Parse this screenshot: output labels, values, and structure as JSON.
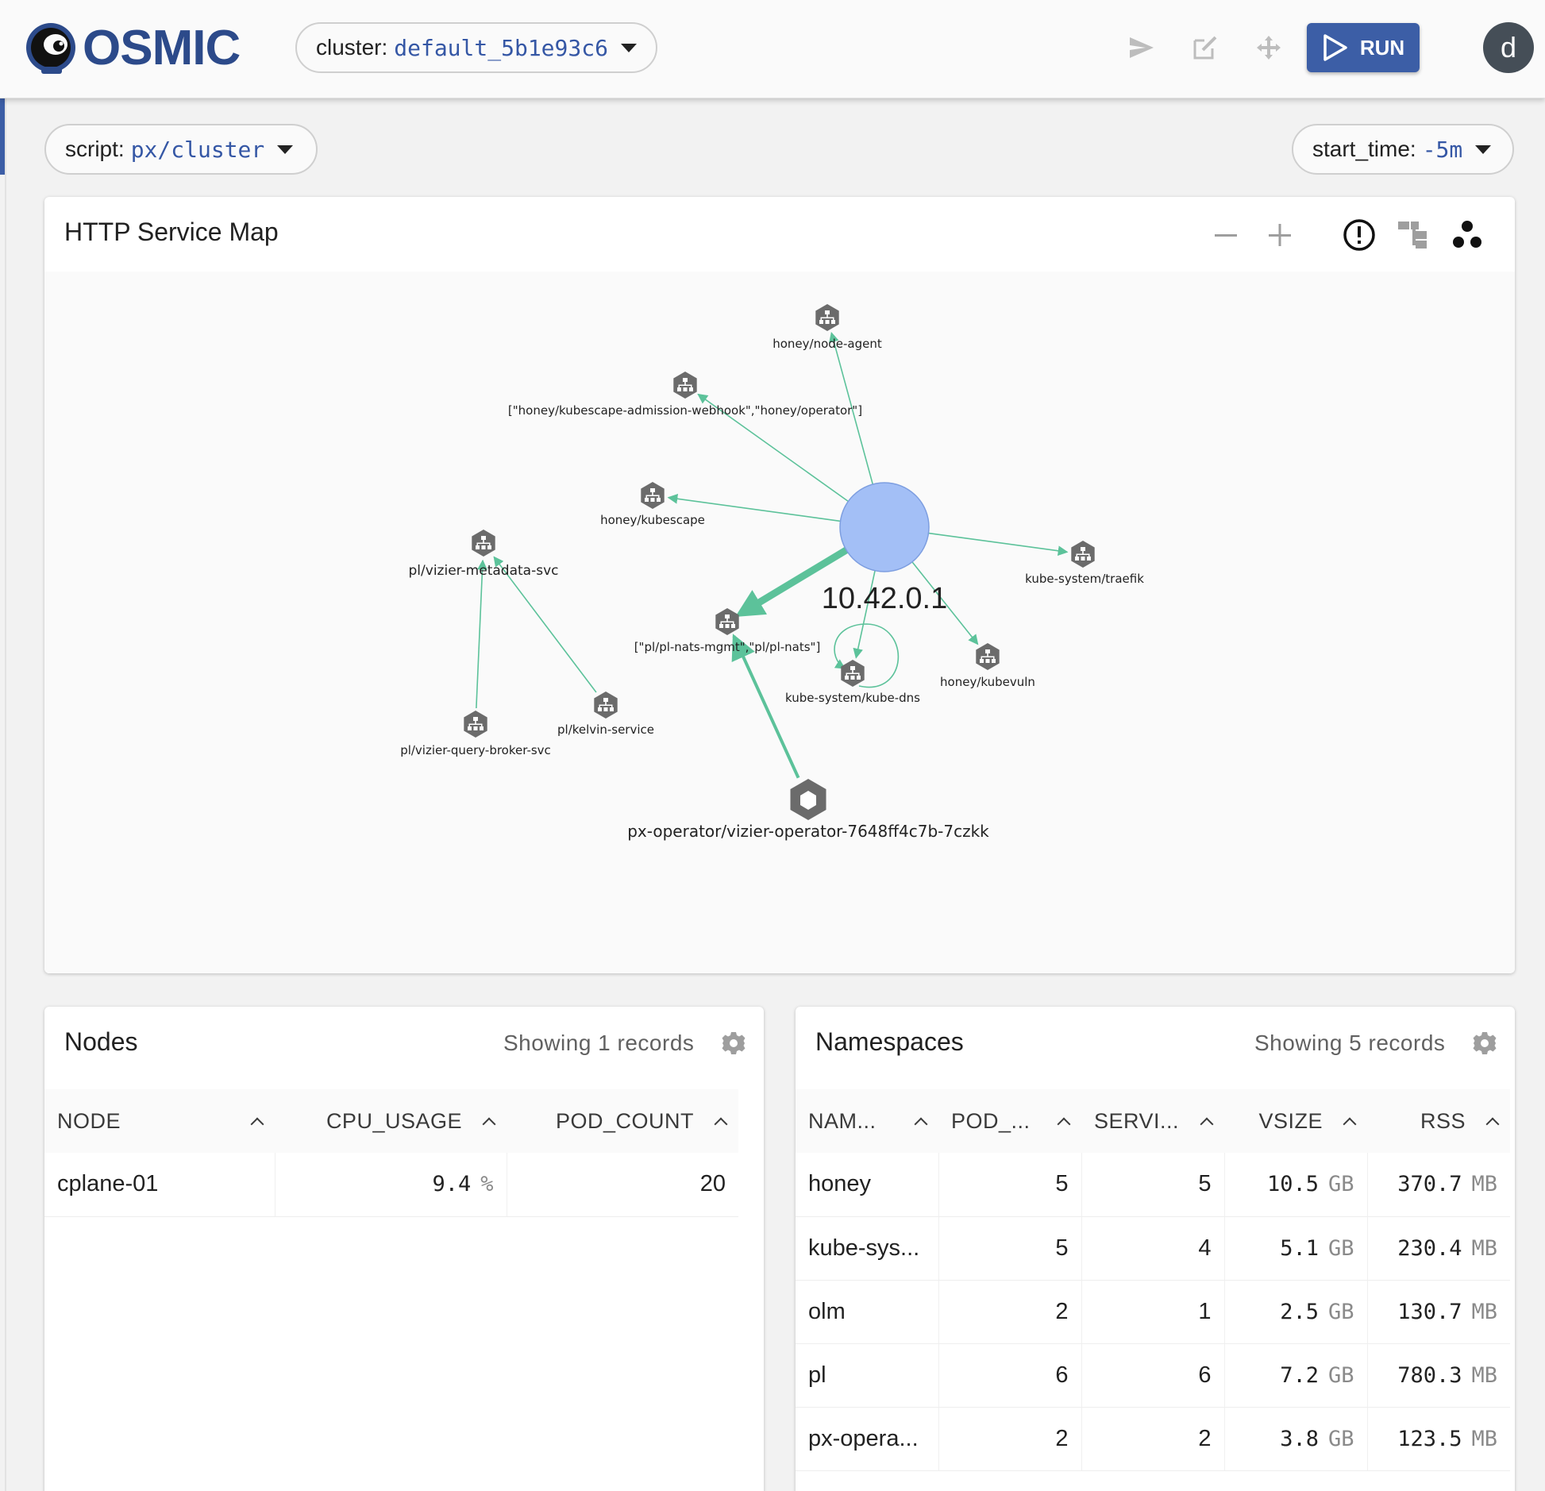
{
  "header": {
    "logo_text": "OSMIC",
    "cluster_label": "cluster:",
    "cluster_value": "default_5b1e93c6",
    "run_label": "RUN",
    "avatar_initial": "d"
  },
  "toolbar": {
    "script_label": "script:",
    "script_value": "px/cluster",
    "time_label": "start_time:",
    "time_value": "-5m"
  },
  "service_map": {
    "title": "HTTP Service Map",
    "center_node_label": "10.42.0.1",
    "nodes": [
      {
        "label": "honey/node-agent"
      },
      {
        "label": "[\"honey/kubescape-admission-webhook\",\"honey/operator\"]"
      },
      {
        "label": "honey/kubescape"
      },
      {
        "label": "kube-system/traefik"
      },
      {
        "label": "pl/vizier-metadata-svc"
      },
      {
        "label": "[\"pl/pl-nats-mgmt\",\"pl/pl-nats\"]"
      },
      {
        "label": "kube-system/kube-dns"
      },
      {
        "label": "honey/kubevuln"
      },
      {
        "label": "pl/kelvin-service"
      },
      {
        "label": "pl/vizier-query-broker-svc"
      },
      {
        "label": "px-operator/vizier-operator-7648ff4c7b-7czkk"
      }
    ],
    "colors": {
      "edge": "#5cc29a",
      "node": "#6b6b6b",
      "center": "#a3bff6"
    }
  },
  "nodes_table": {
    "title": "Nodes",
    "records": "Showing 1 records",
    "columns": [
      "NODE",
      "CPU_USAGE",
      "POD_COUNT"
    ],
    "rows": [
      {
        "node": "cplane-01",
        "cpu": "9.4",
        "cpu_unit": "%",
        "pods": "20"
      }
    ]
  },
  "namespaces_table": {
    "title": "Namespaces",
    "records": "Showing 5 records",
    "columns": [
      "NAM...",
      "POD_...",
      "SERVI...",
      "VSIZE",
      "RSS"
    ],
    "rows": [
      {
        "name": "honey",
        "pods": "5",
        "services": "5",
        "vsize": "10.5",
        "vsize_unit": "GB",
        "rss": "370.7",
        "rss_unit": "MB"
      },
      {
        "name": "kube-sys...",
        "pods": "5",
        "services": "4",
        "vsize": "5.1",
        "vsize_unit": "GB",
        "rss": "230.4",
        "rss_unit": "MB"
      },
      {
        "name": "olm",
        "pods": "2",
        "services": "1",
        "vsize": "2.5",
        "vsize_unit": "GB",
        "rss": "130.7",
        "rss_unit": "MB"
      },
      {
        "name": "pl",
        "pods": "6",
        "services": "6",
        "vsize": "7.2",
        "vsize_unit": "GB",
        "rss": "780.3",
        "rss_unit": "MB"
      },
      {
        "name": "px-opera...",
        "pods": "2",
        "services": "2",
        "vsize": "3.8",
        "vsize_unit": "GB",
        "rss": "123.5",
        "rss_unit": "MB"
      }
    ]
  }
}
